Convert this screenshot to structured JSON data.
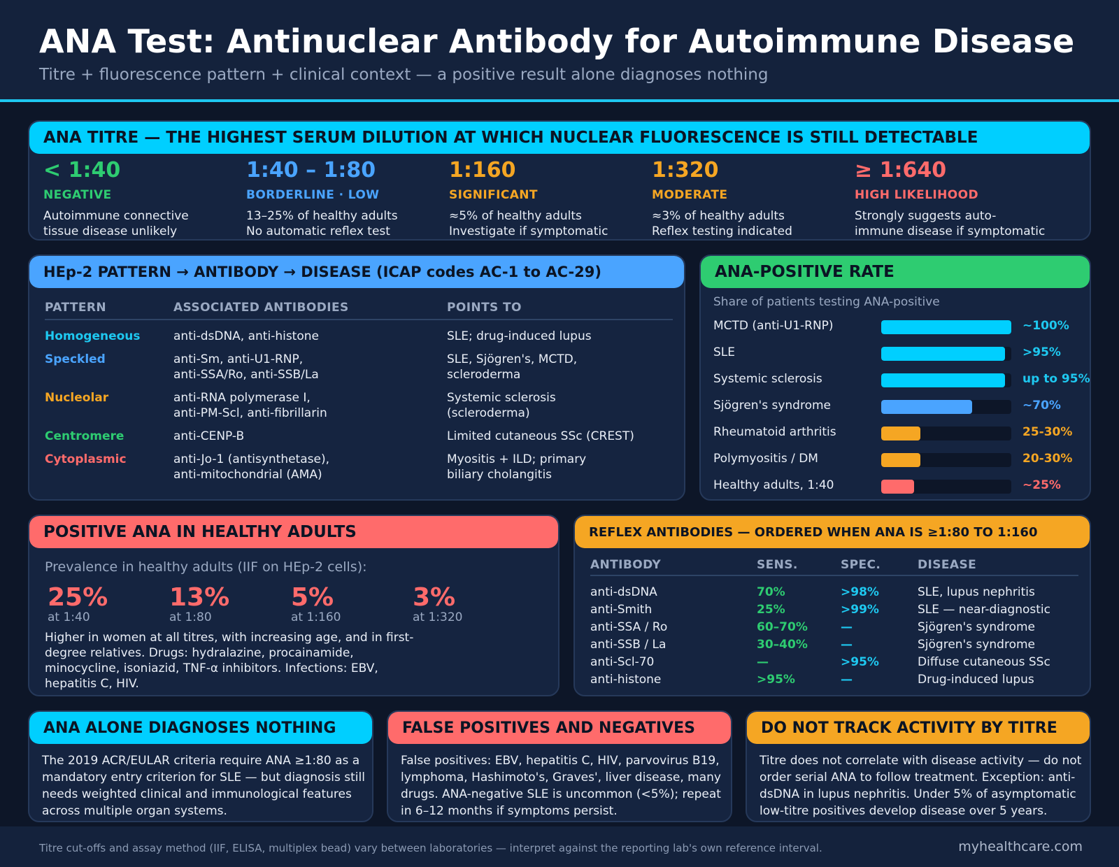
{
  "header": {
    "title": "ANA Test: Antinuclear Antibody for Autoimmune Disease",
    "subtitle": "Titre + fluorescence pattern + clinical context — a positive result alone diagnoses nothing"
  },
  "titre": {
    "title": "ANA TITRE — THE HIGHEST SERUM DILUTION AT WHICH NUCLEAR FLUORESCENCE IS STILL DETECTABLE",
    "items": [
      {
        "value": "< 1:40",
        "label": "NEGATIVE",
        "desc": "Autoimmune connective\ntissue disease unlikely",
        "color": "#2ecc71"
      },
      {
        "value": "1:40 – 1:80",
        "label": "BORDERLINE · LOW",
        "desc": "13–25% of healthy adults\nNo automatic reflex test",
        "color": "#4aa4ff"
      },
      {
        "value": "1:160",
        "label": "SIGNIFICANT",
        "desc": "≈5% of healthy adults\nInvestigate if symptomatic",
        "color": "#f5a623"
      },
      {
        "value": "1:320",
        "label": "MODERATE",
        "desc": "≈3% of healthy adults\nReflex testing indicated",
        "color": "#f5a623"
      },
      {
        "value": "≥ 1:640",
        "label": "HIGH LIKELIHOOD",
        "desc": "Strongly suggests auto-\nimmune disease if symptomatic",
        "color": "#ff6b6b"
      }
    ]
  },
  "pattern": {
    "title": "HEp-2 PATTERN → ANTIBODY → DISEASE (ICAP codes AC-1 to AC-29)",
    "headers": [
      "PATTERN",
      "ASSOCIATED ANTIBODIES",
      "POINTS TO"
    ],
    "rows": [
      {
        "pattern": "Homogeneous",
        "antibodies": "anti-dsDNA, anti-histone",
        "points": "SLE; drug-induced lupus",
        "color": "#1ec8f0"
      },
      {
        "pattern": "Speckled",
        "antibodies": "anti-Sm, anti-U1-RNP,\nanti-SSA/Ro, anti-SSB/La",
        "points": "SLE, Sjögren's, MCTD,\nscleroderma",
        "color": "#4aa4ff"
      },
      {
        "pattern": "Nucleolar",
        "antibodies": "anti-RNA polymerase I,\nanti-PM-Scl, anti-fibrillarin",
        "points": "Systemic sclerosis\n(scleroderma)",
        "color": "#f5a623"
      },
      {
        "pattern": "Centromere",
        "antibodies": "anti-CENP-B",
        "points": "Limited cutaneous SSc (CREST)",
        "color": "#2ecc71"
      },
      {
        "pattern": "Cytoplasmic",
        "antibodies": "anti-Jo-1 (antisynthetase),\nanti-mitochondrial (AMA)",
        "points": "Myositis + ILD; primary\nbiliary cholangitis",
        "color": "#ff6b6b"
      }
    ]
  },
  "rate": {
    "title": "ANA-POSITIVE RATE",
    "caption": "Share of patients testing ANA-positive",
    "rows": [
      {
        "label": "MCTD (anti-U1-RNP)",
        "value": "~100%",
        "fraction": 1.0,
        "color": "#00cfff"
      },
      {
        "label": "SLE",
        "value": ">95%",
        "fraction": 0.95,
        "color": "#00cfff"
      },
      {
        "label": "Systemic sclerosis",
        "value": "up to 95%",
        "fraction": 0.95,
        "color": "#00cfff"
      },
      {
        "label": "Sjögren's syndrome",
        "value": "~70%",
        "fraction": 0.7,
        "color": "#4aa4ff"
      },
      {
        "label": "Rheumatoid arthritis",
        "value": "25-30%",
        "fraction": 0.3,
        "color": "#f5a623"
      },
      {
        "label": "Polymyositis / DM",
        "value": "20-30%",
        "fraction": 0.3,
        "color": "#f5a623"
      },
      {
        "label": "Healthy adults, 1:40",
        "value": "~25%",
        "fraction": 0.25,
        "color": "#ff6b6b"
      }
    ]
  },
  "healthy": {
    "title": "POSITIVE ANA IN HEALTHY ADULTS",
    "caption": "Prevalence in healthy adults (IIF on HEp-2 cells):",
    "stats": [
      {
        "value": "25%",
        "label": "at 1:40"
      },
      {
        "value": "13%",
        "label": "at 1:80"
      },
      {
        "value": "5%",
        "label": "at 1:160"
      },
      {
        "value": "3%",
        "label": "at 1:320"
      }
    ],
    "note": "Higher in women at all titres, with increasing age, and in first-degree relatives. Drugs: hydralazine, procainamide, minocycline, isoniazid, TNF-α inhibitors. Infections: EBV, hepatitis C, HIV."
  },
  "reflex": {
    "title": "REFLEX ANTIBODIES — ORDERED WHEN ANA IS ≥1:80 TO 1:160",
    "headers": [
      "ANTIBODY",
      "SENS.",
      "SPEC.",
      "DISEASE"
    ],
    "rows": [
      {
        "antibody": "anti-dsDNA",
        "sens": "70%",
        "spec": ">98%",
        "disease": "SLE, lupus nephritis"
      },
      {
        "antibody": "anti-Smith",
        "sens": "25%",
        "spec": ">99%",
        "disease": "SLE — near-diagnostic"
      },
      {
        "antibody": "anti-SSA / Ro",
        "sens": "60–70%",
        "spec": "—",
        "disease": "Sjögren's syndrome"
      },
      {
        "antibody": "anti-SSB / La",
        "sens": "30–40%",
        "spec": "—",
        "disease": "Sjögren's syndrome"
      },
      {
        "antibody": "anti-Scl-70",
        "sens": "—",
        "spec": ">95%",
        "disease": "Diffuse cutaneous SSc"
      },
      {
        "antibody": "anti-histone",
        "sens": ">95%",
        "spec": "—",
        "disease": "Drug-induced lupus"
      }
    ]
  },
  "bottom": [
    {
      "title": "ANA ALONE DIAGNOSES NOTHING",
      "text": "The 2019 ACR/EULAR criteria require ANA ≥1:80 as a mandatory entry criterion for SLE — but diagnosis still needs weighted clinical and immunological features across multiple organ systems.",
      "color": "#00cfff"
    },
    {
      "title": "FALSE POSITIVES AND NEGATIVES",
      "text": "False positives: EBV, hepatitis C, HIV, parvovirus B19, lymphoma, Hashimoto's, Graves', liver disease, many drugs. ANA-negative SLE is uncommon (<5%); repeat in 6–12 months if symptoms persist.",
      "color": "#ff6b6b"
    },
    {
      "title": "DO NOT TRACK ACTIVITY BY TITRE",
      "text": "Titre does not correlate with disease activity — do not order serial ANA to follow treatment. Exception: anti-dsDNA in lupus nephritis. Under 5% of asymptomatic low-titre positives develop disease over 5 years.",
      "color": "#f5a623"
    }
  ],
  "footer": {
    "note": "Titre cut-offs and assay method (IIF, ELISA, multiplex bead) vary between laboratories — interpret against the reporting lab's own reference interval.",
    "site": "myhealthcare.com"
  }
}
